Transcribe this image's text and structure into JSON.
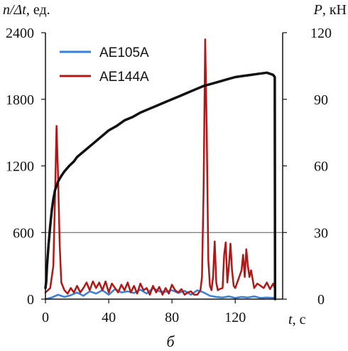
{
  "chart_data": {
    "type": "line",
    "left_axis_title": {
      "var": "n/Δt",
      "unit": ", ед."
    },
    "right_axis_title": {
      "var": "P",
      "unit": ", кН"
    },
    "x_axis_title": {
      "var": "t",
      "unit": ", с"
    },
    "caption": "б",
    "xlim": [
      0,
      150
    ],
    "x_ticks": [
      "0",
      "40",
      "80",
      "120"
    ],
    "x_tick_values": [
      0,
      40,
      80,
      120
    ],
    "ylim_left": [
      0,
      2400
    ],
    "left_ticks": [
      "0",
      "600",
      "1200",
      "1800",
      "2400"
    ],
    "left_tick_values": [
      0,
      600,
      1200,
      1800,
      2400
    ],
    "ylim_right": [
      0,
      120
    ],
    "right_ticks": [
      "0",
      "30",
      "60",
      "90",
      "120"
    ],
    "right_tick_values": [
      0,
      30,
      60,
      90,
      120
    ],
    "gridlines_left": [
      600
    ],
    "legend_placement": "top-left",
    "series": [
      {
        "name": "AE105A",
        "axis": "left",
        "color": "#3b7fd4",
        "x": [
          0,
          4,
          8,
          12,
          16,
          20,
          24,
          28,
          32,
          36,
          40,
          44,
          48,
          52,
          56,
          60,
          64,
          68,
          72,
          76,
          80,
          84,
          88,
          92,
          96,
          100,
          104,
          108,
          112,
          116,
          120,
          124,
          128,
          132,
          136,
          140,
          145
        ],
        "y": [
          0,
          15,
          40,
          20,
          35,
          60,
          30,
          70,
          50,
          80,
          40,
          90,
          60,
          70,
          55,
          85,
          50,
          100,
          70,
          65,
          80,
          55,
          75,
          40,
          80,
          60,
          30,
          20,
          15,
          25,
          10,
          20,
          15,
          25,
          10,
          15,
          10
        ]
      },
      {
        "name": "AE144A",
        "axis": "left",
        "color": "#b01818",
        "x": [
          0,
          3,
          5,
          6,
          7,
          8,
          9,
          10,
          12,
          14,
          16,
          18,
          20,
          22,
          24,
          26,
          28,
          30,
          32,
          34,
          36,
          38,
          40,
          42,
          44,
          46,
          48,
          50,
          52,
          54,
          56,
          58,
          60,
          62,
          64,
          66,
          68,
          70,
          72,
          74,
          76,
          78,
          80,
          82,
          84,
          86,
          88,
          90,
          92,
          94,
          96,
          98,
          99,
          100,
          101,
          102,
          103,
          104,
          105,
          106,
          107,
          108,
          109,
          110,
          112,
          113,
          114,
          115,
          116,
          117,
          118,
          119,
          120,
          122,
          124,
          125,
          126,
          127,
          128,
          129,
          130,
          132,
          134,
          136,
          138,
          140,
          142,
          144,
          145
        ],
        "y": [
          60,
          100,
          300,
          900,
          1560,
          1100,
          500,
          150,
          80,
          50,
          100,
          60,
          120,
          60,
          100,
          150,
          80,
          160,
          100,
          150,
          80,
          160,
          60,
          140,
          100,
          60,
          130,
          80,
          150,
          60,
          120,
          50,
          140,
          80,
          100,
          40,
          120,
          60,
          110,
          40,
          100,
          50,
          130,
          80,
          60,
          90,
          40,
          60,
          70,
          40,
          40,
          80,
          200,
          1000,
          2340,
          1500,
          350,
          120,
          80,
          200,
          520,
          150,
          80,
          90,
          100,
          400,
          510,
          150,
          300,
          500,
          260,
          120,
          100,
          180,
          260,
          400,
          200,
          450,
          300,
          200,
          260,
          100,
          140,
          120,
          100,
          150,
          90,
          140,
          100
        ]
      },
      {
        "name": "",
        "axis": "right",
        "color": "#111111",
        "x": [
          0,
          0.5,
          1,
          2,
          3,
          4,
          5,
          6,
          8,
          10,
          12,
          15,
          18,
          20,
          25,
          30,
          35,
          40,
          45,
          50,
          55,
          60,
          65,
          70,
          75,
          80,
          85,
          90,
          95,
          100,
          105,
          110,
          115,
          120,
          125,
          130,
          135,
          140,
          142,
          144,
          145,
          145.2
        ],
        "y": [
          5,
          8,
          15,
          25,
          33,
          40,
          45,
          49,
          53,
          55.5,
          57.5,
          60,
          62,
          64,
          67,
          70,
          73,
          76,
          78,
          80.5,
          82,
          84,
          85.5,
          87,
          88.5,
          90,
          91.5,
          93,
          94.5,
          96,
          97,
          98,
          99,
          100,
          100.5,
          101,
          101.5,
          102,
          101.5,
          101,
          100,
          0
        ]
      }
    ]
  }
}
